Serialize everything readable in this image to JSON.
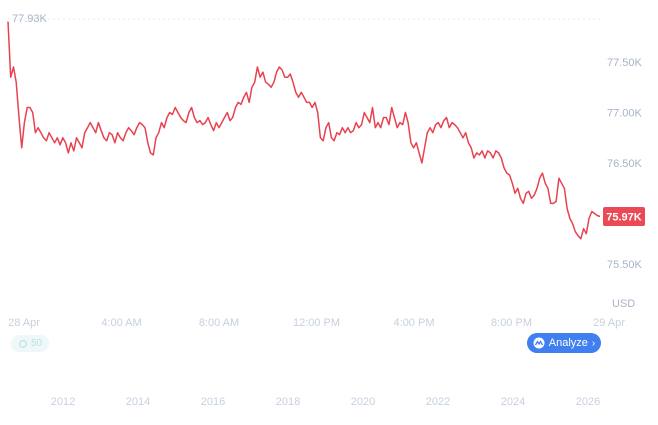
{
  "chart_data": {
    "type": "line",
    "x_time_ticks": [
      "28 Apr",
      "4:00 AM",
      "8:00 AM",
      "12:00 PM",
      "4:00 PM",
      "8:00 PM",
      "29 Apr"
    ],
    "x_year_ticks": [
      "2012",
      "2014",
      "2016",
      "2018",
      "2020",
      "2022",
      "2024",
      "2026"
    ],
    "y_ticks": [
      "75.50K",
      "76.00K",
      "76.50K",
      "77.00K",
      "77.50K"
    ],
    "ylim": [
      75.25,
      77.93
    ],
    "y_unit": "USD",
    "max_label": "77.93K",
    "current_label": "75.97K",
    "current_value": 75.97,
    "line_color": "#e8424f",
    "badge_color": "#ea4a55",
    "series": [
      {
        "values": [
          77.9,
          77.35,
          77.45,
          77.3,
          76.95,
          76.65,
          76.9,
          77.05,
          77.05,
          77.0,
          76.8,
          76.85,
          76.8,
          76.75,
          76.72,
          76.8,
          76.75,
          76.7,
          76.75,
          76.68,
          76.75,
          76.7,
          76.6,
          76.7,
          76.62,
          76.75,
          76.7,
          76.65,
          76.8,
          76.85,
          76.9,
          76.85,
          76.8,
          76.9,
          76.82,
          76.75,
          76.72,
          76.8,
          76.78,
          76.7,
          76.8,
          76.75,
          76.72,
          76.8,
          76.85,
          76.82,
          76.78,
          76.85,
          76.9,
          76.88,
          76.85,
          76.7,
          76.6,
          76.58,
          76.75,
          76.8,
          76.9,
          76.85,
          76.95,
          77.0,
          76.98,
          77.05,
          77.0,
          76.95,
          76.92,
          76.9,
          77.0,
          77.05,
          76.95,
          76.9,
          76.92,
          76.88,
          76.9,
          76.95,
          76.88,
          76.82,
          76.9,
          76.85,
          76.9,
          76.95,
          77.0,
          76.92,
          76.95,
          77.05,
          77.1,
          77.08,
          77.15,
          77.2,
          77.1,
          77.25,
          77.3,
          77.45,
          77.35,
          77.4,
          77.3,
          77.28,
          77.25,
          77.3,
          77.4,
          77.45,
          77.42,
          77.35,
          77.35,
          77.38,
          77.3,
          77.2,
          77.15,
          77.2,
          77.15,
          77.1,
          77.1,
          77.05,
          77.1,
          77.0,
          76.75,
          76.72,
          76.85,
          76.9,
          76.75,
          76.72,
          76.8,
          76.78,
          76.85,
          76.8,
          76.85,
          76.8,
          76.82,
          76.9,
          76.85,
          76.88,
          77.0,
          76.95,
          76.9,
          77.05,
          76.85,
          76.9,
          76.85,
          76.95,
          76.95,
          76.88,
          77.05,
          76.95,
          76.85,
          76.9,
          76.88,
          77.0,
          76.9,
          76.7,
          76.65,
          76.7,
          76.6,
          76.5,
          76.65,
          76.8,
          76.85,
          76.8,
          76.88,
          76.9,
          76.85,
          76.92,
          76.95,
          76.85,
          76.9,
          76.88,
          76.85,
          76.8,
          76.75,
          76.8,
          76.7,
          76.65,
          76.55,
          76.6,
          76.58,
          76.62,
          76.55,
          76.62,
          76.6,
          76.55,
          76.62,
          76.6,
          76.55,
          76.45,
          76.4,
          76.38,
          76.3,
          76.2,
          76.25,
          76.15,
          76.1,
          76.2,
          76.22,
          76.15,
          76.18,
          76.25,
          76.35,
          76.4,
          76.3,
          76.25,
          76.1,
          76.1,
          76.12,
          76.35,
          76.3,
          76.25,
          76.05,
          75.95,
          75.9,
          75.82,
          75.78,
          75.75,
          75.85,
          75.8,
          75.95,
          76.02,
          76.0,
          75.98,
          75.97
        ]
      }
    ]
  },
  "controls": {
    "analyze_label": "Analyze",
    "faint_pill_label": "50"
  }
}
